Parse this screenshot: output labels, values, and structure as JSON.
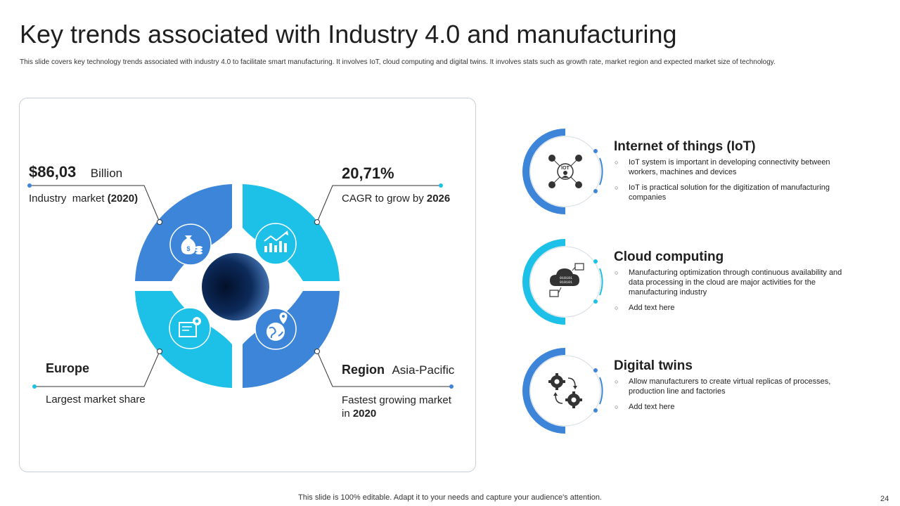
{
  "title": "Key trends associated with Industry 4.0 and manufacturing",
  "subtitle": "This slide covers key technology trends associated with industry 4.0 to facilitate smart manufacturing. It involves IoT,  cloud computing and digital twins. It involves stats such as growth rate, market region and expected market size of technology.",
  "stats": {
    "market_size": {
      "value": "$86,03",
      "unit": "Billion",
      "desc": "Industry  market ",
      "desc_bold": "(2020)"
    },
    "cagr": {
      "value": "20,71%",
      "desc": "CAGR to grow by ",
      "desc_bold": "2026"
    },
    "europe": {
      "value": "Europe",
      "desc": "Largest market share"
    },
    "region": {
      "label": "Region",
      "value": "Asia-Pacific",
      "desc_line1": "Fastest growing market",
      "desc_prefix": "in ",
      "desc_bold": "2020"
    }
  },
  "donut_icons": [
    "money-bag-icon",
    "growth-chart-icon",
    "blueprint-gear-icon",
    "globe-location-icon"
  ],
  "features": [
    {
      "title": "Internet of things (IoT)",
      "icon": "iot-network-icon",
      "bullets": [
        "IoT system is important in developing connectivity between workers, machines and devices",
        "IoT is practical solution for the digitization of manufacturing companies"
      ],
      "icon_text": "IOT"
    },
    {
      "title": "Cloud computing",
      "icon": "cloud-computing-icon",
      "bullets": [
        "Manufacturing optimization through continuous availability and data processing in the cloud are major activities for the manufacturing industry",
        "Add text here"
      ],
      "icon_text": "010101"
    },
    {
      "title": "Digital twins",
      "icon": "gears-sync-icon",
      "bullets": [
        "Allow manufacturers to create virtual replicas of processes, production line and factories",
        "Add text here"
      ]
    }
  ],
  "colors": {
    "dark_blue": "#3d85d8",
    "light_blue": "#1dc0e6",
    "center_dark": "#0a1a3a"
  },
  "footer": "This slide is 100% editable. Adapt it to your needs and capture your audience's attention.",
  "page_number": "24"
}
